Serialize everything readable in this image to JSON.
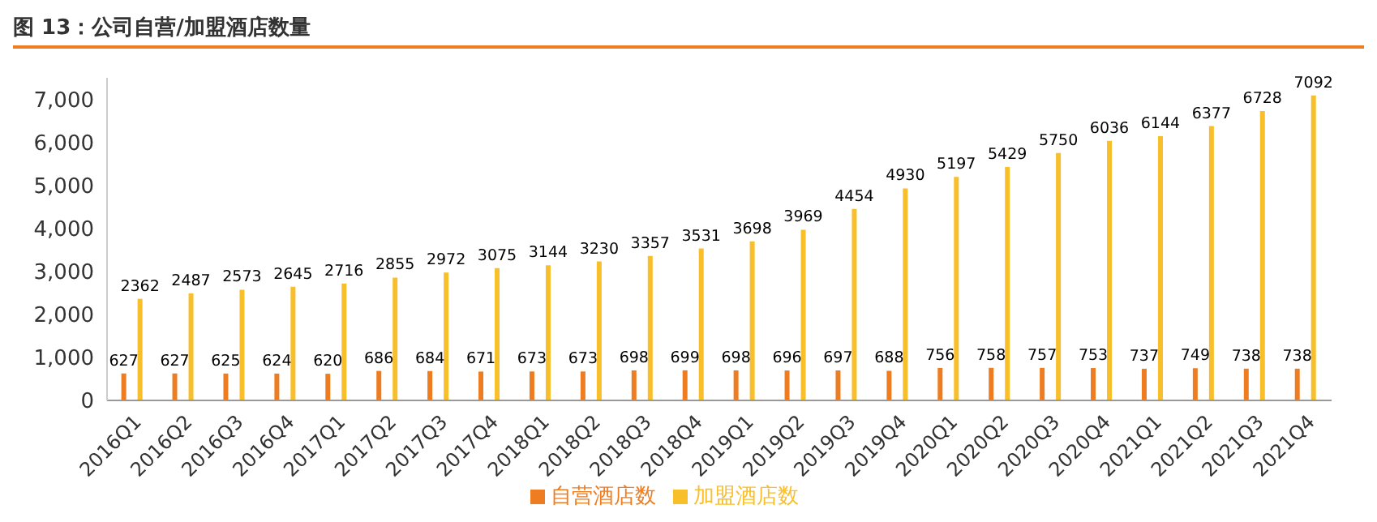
{
  "chart_data": {
    "type": "bar",
    "title": "图 13：公司自营/加盟酒店数量",
    "categories": [
      "2016Q1",
      "2016Q2",
      "2016Q3",
      "2016Q4",
      "2017Q1",
      "2017Q2",
      "2017Q3",
      "2017Q4",
      "2018Q1",
      "2018Q2",
      "2018Q3",
      "2018Q4",
      "2019Q1",
      "2019Q2",
      "2019Q3",
      "2019Q4",
      "2020Q1",
      "2020Q2",
      "2020Q3",
      "2020Q4",
      "2021Q1",
      "2021Q2",
      "2021Q3",
      "2021Q4"
    ],
    "series": [
      {
        "name": "自营酒店数",
        "color": "#ee7d22",
        "values": [
          627,
          627,
          625,
          624,
          620,
          686,
          684,
          671,
          673,
          673,
          698,
          699,
          698,
          696,
          697,
          688,
          756,
          758,
          757,
          753,
          737,
          749,
          738,
          738
        ]
      },
      {
        "name": "加盟酒店数",
        "color": "#f8bf2a",
        "values": [
          2362,
          2487,
          2573,
          2645,
          2716,
          2855,
          2972,
          3075,
          3144,
          3230,
          3357,
          3531,
          3698,
          3969,
          4454,
          4930,
          5197,
          5429,
          5750,
          6036,
          6144,
          6377,
          6728,
          7092
        ]
      }
    ],
    "ylim": [
      0,
      7500
    ],
    "yticks": [
      0,
      {
        "value": 1000,
        "label": "1,000"
      },
      {
        "value": 2000,
        "label": "2,000"
      },
      {
        "value": 3000,
        "label": "3,000"
      },
      {
        "value": 4000,
        "label": "4,000"
      },
      {
        "value": 5000,
        "label": "5,000"
      },
      {
        "value": 6000,
        "label": "6,000"
      },
      {
        "value": 7000,
        "label": "7,000"
      }
    ],
    "data_labels": true,
    "grid": false,
    "legend": "bottom"
  }
}
